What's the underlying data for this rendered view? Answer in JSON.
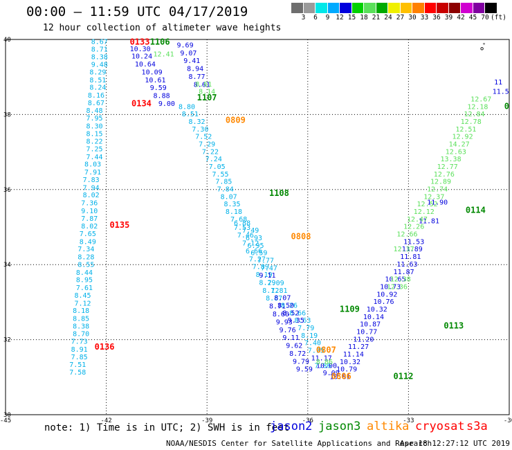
{
  "header": {
    "title": "00:00 – 11:59 UTC 04/17/2019",
    "subtitle": "12 hour collection of altimeter wave heights"
  },
  "scale": {
    "unit": "(ft)",
    "colors": [
      "#6e6e6e",
      "#9a9a9a",
      "#00e8e8",
      "#00aaff",
      "#0000dd",
      "#00d000",
      "#5ae05a",
      "#00aa00",
      "#f0f000",
      "#ffc000",
      "#ff8000",
      "#ff0000",
      "#c80000",
      "#8c0000",
      "#d000d0",
      "#8000a0",
      "#000000"
    ],
    "labels": [
      "3",
      "6",
      "9",
      "12",
      "15",
      "18",
      "21",
      "24",
      "27",
      "30",
      "33",
      "36",
      "39",
      "42",
      "45",
      "70"
    ]
  },
  "map": {
    "lon_min": -45,
    "lon_max": -30,
    "lat_min": 30,
    "lat_max": 40,
    "x_ticks": [
      {
        "v": -45,
        "label": "-45"
      },
      {
        "v": -42,
        "label": "-42"
      },
      {
        "v": -39,
        "label": "-39"
      },
      {
        "v": -36,
        "label": "-36"
      },
      {
        "v": -33,
        "label": "-33"
      },
      {
        "v": -30,
        "label": "-30"
      }
    ],
    "y_ticks": [
      {
        "v": 40,
        "label": "40"
      },
      {
        "v": 38,
        "label": "38"
      },
      {
        "v": 36,
        "label": "36"
      },
      {
        "v": 34,
        "label": "34"
      },
      {
        "v": 32,
        "label": "32"
      },
      {
        "v": 30,
        "label": "30"
      }
    ],
    "land_marker": "°"
  },
  "tracks": [
    {
      "satellite": "jason2",
      "color": "#00b0e8",
      "points": [
        {
          "lon": -42.45,
          "lat": 39.88,
          "v": "8.67"
        },
        {
          "lon": -42.45,
          "lat": 39.68,
          "v": "8.71"
        },
        {
          "lon": -42.45,
          "lat": 39.47,
          "v": "8.38"
        },
        {
          "lon": -42.45,
          "lat": 39.27,
          "v": "9.48"
        },
        {
          "lon": -42.5,
          "lat": 39.07,
          "v": "8.29"
        },
        {
          "lon": -42.5,
          "lat": 38.86,
          "v": "8.51"
        },
        {
          "lon": -42.5,
          "lat": 38.66,
          "v": "8.24"
        },
        {
          "lon": -42.55,
          "lat": 38.45,
          "v": "8.16"
        },
        {
          "lon": -42.55,
          "lat": 38.25,
          "v": "8.67"
        },
        {
          "lon": -42.6,
          "lat": 38.04,
          "v": "8.48"
        },
        {
          "lon": -42.6,
          "lat": 37.84,
          "v": "7.95"
        },
        {
          "lon": -42.6,
          "lat": 37.63,
          "v": "8.30"
        },
        {
          "lon": -42.6,
          "lat": 37.43,
          "v": "8.15"
        },
        {
          "lon": -42.6,
          "lat": 37.22,
          "v": "8.22"
        },
        {
          "lon": -42.6,
          "lat": 37.02,
          "v": "7.25"
        },
        {
          "lon": -42.6,
          "lat": 36.81,
          "v": "7.44"
        },
        {
          "lon": -42.65,
          "lat": 36.61,
          "v": "8.03"
        },
        {
          "lon": -42.65,
          "lat": 36.4,
          "v": "7.91"
        },
        {
          "lon": -42.7,
          "lat": 36.2,
          "v": "7.83"
        },
        {
          "lon": -42.7,
          "lat": 35.99,
          "v": "7.94"
        },
        {
          "lon": -42.7,
          "lat": 35.79,
          "v": "8.02"
        },
        {
          "lon": -42.75,
          "lat": 35.58,
          "v": "7.36"
        },
        {
          "lon": -42.75,
          "lat": 35.37,
          "v": "9.10"
        },
        {
          "lon": -42.75,
          "lat": 35.17,
          "v": "7.87"
        },
        {
          "lon": -42.75,
          "lat": 34.96,
          "v": "8.02"
        },
        {
          "lon": -42.8,
          "lat": 34.76,
          "v": "7.65"
        },
        {
          "lon": -42.8,
          "lat": 34.55,
          "v": "8.49"
        },
        {
          "lon": -42.85,
          "lat": 34.35,
          "v": "7.34"
        },
        {
          "lon": -42.85,
          "lat": 34.14,
          "v": "8.28"
        },
        {
          "lon": -42.85,
          "lat": 33.94,
          "v": "8.55"
        },
        {
          "lon": -42.9,
          "lat": 33.73,
          "v": "8.44"
        },
        {
          "lon": -42.9,
          "lat": 33.53,
          "v": "8.95"
        },
        {
          "lon": -42.9,
          "lat": 33.32,
          "v": "7.61"
        },
        {
          "lon": -42.95,
          "lat": 33.12,
          "v": "8.45"
        },
        {
          "lon": -42.95,
          "lat": 32.91,
          "v": "7.12"
        },
        {
          "lon": -43.0,
          "lat": 32.71,
          "v": "8.18"
        },
        {
          "lon": -43.0,
          "lat": 32.5,
          "v": "8.85"
        },
        {
          "lon": -43.0,
          "lat": 32.3,
          "v": "8.38"
        },
        {
          "lon": -43.0,
          "lat": 32.09,
          "v": "8.70"
        },
        {
          "lon": -43.05,
          "lat": 31.89,
          "v": "7.73"
        },
        {
          "lon": -43.05,
          "lat": 31.68,
          "v": "8.91"
        },
        {
          "lon": -43.05,
          "lat": 31.48,
          "v": "7.85"
        },
        {
          "lon": -43.1,
          "lat": 31.27,
          "v": "7.51"
        },
        {
          "lon": -43.1,
          "lat": 31.07,
          "v": "7.58"
        }
      ]
    },
    {
      "satellite": "jason2",
      "color": "#0000dd",
      "points": [
        {
          "lon": -41.3,
          "lat": 39.69,
          "v": "10.30"
        },
        {
          "lon": -41.25,
          "lat": 39.49,
          "v": "10.24"
        },
        {
          "lon": -41.15,
          "lat": 39.28,
          "v": "10.64"
        },
        {
          "lon": -40.95,
          "lat": 39.07,
          "v": "10.09"
        },
        {
          "lon": -40.85,
          "lat": 38.86,
          "v": "10.61"
        },
        {
          "lon": -40.7,
          "lat": 38.65,
          "v": "9.59"
        },
        {
          "lon": -40.6,
          "lat": 38.44,
          "v": "8.88"
        },
        {
          "lon": -40.45,
          "lat": 38.23,
          "v": "9.00"
        },
        {
          "lon": -39.9,
          "lat": 39.79,
          "v": "9.69"
        },
        {
          "lon": -39.8,
          "lat": 39.58,
          "v": "9.07"
        },
        {
          "lon": -39.7,
          "lat": 39.37,
          "v": "9.41"
        },
        {
          "lon": -39.6,
          "lat": 39.16,
          "v": "8.94"
        },
        {
          "lon": -39.55,
          "lat": 38.95,
          "v": "8.77"
        },
        {
          "lon": -39.4,
          "lat": 38.74,
          "v": "8.61"
        }
      ]
    },
    {
      "satellite": "jason2",
      "color": "#00b0e8",
      "points": [
        {
          "lon": -39.85,
          "lat": 38.15,
          "v": "8.80"
        },
        {
          "lon": -39.75,
          "lat": 37.95,
          "v": "8.51"
        },
        {
          "lon": -39.55,
          "lat": 37.75,
          "v": "8.32"
        },
        {
          "lon": -39.45,
          "lat": 37.55,
          "v": "7.30"
        },
        {
          "lon": -39.35,
          "lat": 37.35,
          "v": "7.52"
        },
        {
          "lon": -39.25,
          "lat": 37.15,
          "v": "7.29"
        },
        {
          "lon": -39.15,
          "lat": 36.95,
          "v": "7.22"
        },
        {
          "lon": -39.05,
          "lat": 36.75,
          "v": "7.24"
        },
        {
          "lon": -38.95,
          "lat": 36.55,
          "v": "7.05"
        },
        {
          "lon": -38.85,
          "lat": 36.35,
          "v": "7.55"
        },
        {
          "lon": -38.75,
          "lat": 36.15,
          "v": "7.85"
        },
        {
          "lon": -38.7,
          "lat": 35.95,
          "v": "7.84"
        },
        {
          "lon": -38.6,
          "lat": 35.75,
          "v": "8.07"
        },
        {
          "lon": -38.5,
          "lat": 35.55,
          "v": "8.35"
        },
        {
          "lon": -38.45,
          "lat": 35.35,
          "v": "8.18"
        },
        {
          "lon": -38.3,
          "lat": 35.15,
          "v": "7.68"
        },
        {
          "lon": -38.2,
          "lat": 34.93,
          "v": "7.53"
        },
        {
          "lon": -38.1,
          "lat": 34.72,
          "v": "7.46"
        },
        {
          "lon": -37.95,
          "lat": 34.51,
          "v": "7.12"
        },
        {
          "lon": -37.85,
          "lat": 34.3,
          "v": "6.66"
        },
        {
          "lon": -37.75,
          "lat": 34.09,
          "v": "7.27"
        },
        {
          "lon": -37.65,
          "lat": 33.88,
          "v": "7.89"
        },
        {
          "lon": -37.55,
          "lat": 33.67,
          "v": "8.19"
        },
        {
          "lon": -37.45,
          "lat": 33.46,
          "v": "8.29"
        },
        {
          "lon": -37.35,
          "lat": 33.25,
          "v": "8.12"
        },
        {
          "lon": -37.25,
          "lat": 33.04,
          "v": "8.87"
        }
      ]
    },
    {
      "satellite": "jason2",
      "color": "#0000dd",
      "points": [
        {
          "lon": -37.15,
          "lat": 32.83,
          "v": "8.71"
        },
        {
          "lon": -37.05,
          "lat": 32.62,
          "v": "8.60"
        },
        {
          "lon": -36.95,
          "lat": 32.41,
          "v": "9.93"
        },
        {
          "lon": -36.85,
          "lat": 32.2,
          "v": "9.76"
        },
        {
          "lon": -36.75,
          "lat": 31.99,
          "v": "9.11"
        },
        {
          "lon": -36.65,
          "lat": 31.78,
          "v": "9.62"
        },
        {
          "lon": -36.55,
          "lat": 31.57,
          "v": "8.72"
        },
        {
          "lon": -36.45,
          "lat": 31.36,
          "v": "9.79"
        },
        {
          "lon": -36.35,
          "lat": 31.15,
          "v": "9.59"
        }
      ]
    },
    {
      "satellite": "jason3",
      "color": "#00b0e8",
      "points": [
        {
          "lon": -38.2,
          "lat": 35.05,
          "v": "6.88"
        },
        {
          "lon": -37.95,
          "lat": 34.85,
          "v": "7.49"
        },
        {
          "lon": -37.85,
          "lat": 34.65,
          "v": "6.93"
        },
        {
          "lon": -37.8,
          "lat": 34.45,
          "v": "6.95"
        },
        {
          "lon": -37.7,
          "lat": 34.25,
          "v": "6.59"
        },
        {
          "lon": -37.5,
          "lat": 34.05,
          "v": "7.77"
        },
        {
          "lon": -37.4,
          "lat": 33.85,
          "v": "7.47"
        },
        {
          "lon": -37.2,
          "lat": 33.45,
          "v": "7.09"
        },
        {
          "lon": -37.1,
          "lat": 33.25,
          "v": "7.81"
        },
        {
          "lon": -36.8,
          "lat": 32.85,
          "v": "8.26"
        },
        {
          "lon": -36.55,
          "lat": 32.65,
          "v": "8.66"
        },
        {
          "lon": -36.4,
          "lat": 32.45,
          "v": "8.63"
        },
        {
          "lon": -36.3,
          "lat": 32.25,
          "v": "7.79"
        },
        {
          "lon": -36.2,
          "lat": 32.05,
          "v": "8.19"
        },
        {
          "lon": -36.1,
          "lat": 31.85,
          "v": "7.40"
        },
        {
          "lon": -36.0,
          "lat": 31.65,
          "v": "7.95"
        },
        {
          "lon": -35.8,
          "lat": 31.25,
          "v": "7.86"
        }
      ]
    },
    {
      "satellite": "jason3",
      "color": "#0000dd",
      "points": [
        {
          "lon": -37.45,
          "lat": 33.65,
          "v": "9.11"
        },
        {
          "lon": -37.0,
          "lat": 33.05,
          "v": "8.07"
        },
        {
          "lon": -36.9,
          "lat": 32.85,
          "v": "8.50"
        },
        {
          "lon": -36.75,
          "lat": 32.65,
          "v": "8.52"
        },
        {
          "lon": -36.6,
          "lat": 32.45,
          "v": "9.35"
        },
        {
          "lon": -35.9,
          "lat": 31.45,
          "v": "11.17"
        },
        {
          "lon": -35.75,
          "lat": 31.25,
          "v": "10.00"
        },
        {
          "lon": -35.55,
          "lat": 31.05,
          "v": "9.09"
        },
        {
          "lon": -35.35,
          "lat": 30.95,
          "v": "10.81"
        },
        {
          "lon": -35.15,
          "lat": 31.15,
          "v": "10.79"
        },
        {
          "lon": -35.05,
          "lat": 31.35,
          "v": "10.32"
        },
        {
          "lon": -34.95,
          "lat": 31.55,
          "v": "11.14"
        },
        {
          "lon": -34.8,
          "lat": 31.75,
          "v": "11.27"
        },
        {
          "lon": -34.65,
          "lat": 31.95,
          "v": "11.20"
        },
        {
          "lon": -34.55,
          "lat": 32.15,
          "v": "10.77"
        },
        {
          "lon": -34.45,
          "lat": 32.35,
          "v": "10.87"
        },
        {
          "lon": -34.35,
          "lat": 32.55,
          "v": "10.14"
        },
        {
          "lon": -34.25,
          "lat": 32.75,
          "v": "10.32"
        },
        {
          "lon": -34.05,
          "lat": 32.95,
          "v": "10.76"
        },
        {
          "lon": -33.95,
          "lat": 33.15,
          "v": "10.92"
        },
        {
          "lon": -33.85,
          "lat": 33.35,
          "v": "10.73"
        },
        {
          "lon": -33.7,
          "lat": 33.55,
          "v": "10.65"
        },
        {
          "lon": -33.45,
          "lat": 33.75,
          "v": "11.87"
        },
        {
          "lon": -33.35,
          "lat": 33.95,
          "v": "11.63"
        },
        {
          "lon": -33.25,
          "lat": 34.15,
          "v": "11.81"
        },
        {
          "lon": -33.2,
          "lat": 34.35,
          "v": "11.89"
        },
        {
          "lon": -33.15,
          "lat": 34.55,
          "v": "11.53"
        },
        {
          "lon": -32.7,
          "lat": 35.1,
          "v": "11.81"
        },
        {
          "lon": -32.45,
          "lat": 35.6,
          "v": "11.90"
        }
      ]
    },
    {
      "satellite": "jason3",
      "color": "#5ae05a",
      "points": [
        {
          "lon": -35.75,
          "lat": 31.35,
          "v": "8.86"
        },
        {
          "lon": -33.65,
          "lat": 33.35,
          "v": "12.36"
        },
        {
          "lon": -33.55,
          "lat": 33.55,
          "v": "12.38"
        },
        {
          "lon": -33.45,
          "lat": 34.35,
          "v": "12.37"
        },
        {
          "lon": -33.35,
          "lat": 34.75,
          "v": "12.66"
        },
        {
          "lon": -33.15,
          "lat": 34.95,
          "v": "12.26"
        },
        {
          "lon": -33.05,
          "lat": 35.15,
          "v": "12.47"
        },
        {
          "lon": -32.85,
          "lat": 35.35,
          "v": "12.12"
        },
        {
          "lon": -32.75,
          "lat": 35.55,
          "v": "12.52"
        },
        {
          "lon": -32.55,
          "lat": 35.75,
          "v": "12.37"
        },
        {
          "lon": -32.45,
          "lat": 35.95,
          "v": "12.74"
        },
        {
          "lon": -32.35,
          "lat": 36.15,
          "v": "12.89"
        },
        {
          "lon": -32.25,
          "lat": 36.35,
          "v": "12.76"
        },
        {
          "lon": -32.15,
          "lat": 36.55,
          "v": "12.77"
        },
        {
          "lon": -32.05,
          "lat": 36.75,
          "v": "13.38"
        },
        {
          "lon": -31.9,
          "lat": 36.95,
          "v": "12.63"
        },
        {
          "lon": -31.8,
          "lat": 37.15,
          "v": "14.27"
        },
        {
          "lon": -31.7,
          "lat": 37.35,
          "v": "12.92"
        },
        {
          "lon": -31.6,
          "lat": 37.55,
          "v": "12.51"
        },
        {
          "lon": -31.45,
          "lat": 37.75,
          "v": "12.78"
        },
        {
          "lon": -31.35,
          "lat": 37.95,
          "v": "12.84"
        },
        {
          "lon": -31.25,
          "lat": 38.15,
          "v": "12.18"
        },
        {
          "lon": -31.15,
          "lat": 38.35,
          "v": "12.67"
        },
        {
          "lon": -40.6,
          "lat": 39.55,
          "v": "12.41"
        },
        {
          "lon": -39.35,
          "lat": 38.75,
          "v": "8.61"
        },
        {
          "lon": -39.25,
          "lat": 38.55,
          "v": "8.14"
        }
      ]
    },
    {
      "satellite": "jason3",
      "color": "#0000dd",
      "points": [
        {
          "lon": -30.45,
          "lat": 38.8,
          "v": "11"
        },
        {
          "lon": -30.5,
          "lat": 38.55,
          "v": "11.5"
        }
      ]
    },
    {
      "satellite": "time",
      "color": "#ff0000",
      "points": [
        {
          "lon": -41.3,
          "lat": 39.86,
          "v": "0133"
        },
        {
          "lon": -41.25,
          "lat": 38.22,
          "v": "0134"
        },
        {
          "lon": -41.9,
          "lat": 34.98,
          "v": "0135"
        },
        {
          "lon": -42.35,
          "lat": 31.73,
          "v": "0136"
        }
      ]
    },
    {
      "satellite": "time",
      "color": "#008800",
      "points": [
        {
          "lon": -40.7,
          "lat": 39.86,
          "v": "1106"
        },
        {
          "lon": -39.3,
          "lat": 38.38,
          "v": "1107"
        },
        {
          "lon": -37.15,
          "lat": 35.83,
          "v": "1108"
        },
        {
          "lon": -35.05,
          "lat": 32.74,
          "v": "1109"
        },
        {
          "lon": -33.45,
          "lat": 30.95,
          "v": "0112"
        },
        {
          "lon": -31.95,
          "lat": 32.3,
          "v": "0113"
        },
        {
          "lon": -31.3,
          "lat": 35.38,
          "v": "0114"
        },
        {
          "lon": -30.15,
          "lat": 38.15,
          "v": "0"
        }
      ]
    },
    {
      "satellite": "time",
      "color": "#ff8800",
      "points": [
        {
          "lon": -38.45,
          "lat": 37.78,
          "v": "0809"
        },
        {
          "lon": -36.5,
          "lat": 34.68,
          "v": "0808"
        },
        {
          "lon": -35.75,
          "lat": 31.65,
          "v": "0807"
        },
        {
          "lon": -35.3,
          "lat": 30.95,
          "v": "0806"
        }
      ]
    }
  ],
  "legend": {
    "note": "note:  1) Time is in UTC; 2) SWH is in feet",
    "satellites": [
      {
        "label": "jason2",
        "color": "#0000dd"
      },
      {
        "label": "jason3",
        "color": "#008800"
      },
      {
        "label": "altika",
        "color": "#ff8800"
      },
      {
        "label": "cryosat",
        "color": "#ff0000"
      },
      {
        "label": "s3a",
        "color": "#ff0000"
      }
    ]
  },
  "footer": {
    "credit": "NOAA/NESDIS Center for Satellite Applications and Research",
    "date": "Apr 18 12:27:12 UTC 2019"
  }
}
